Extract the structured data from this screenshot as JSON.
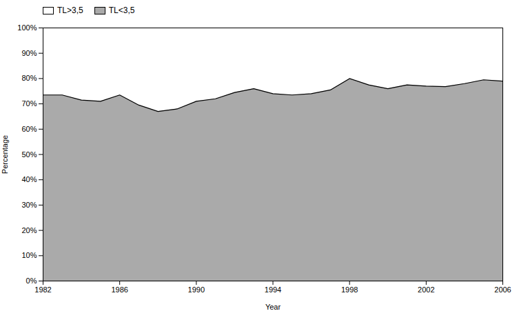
{
  "chart_data": {
    "type": "area",
    "stacked": true,
    "x": [
      1982,
      1983,
      1984,
      1985,
      1986,
      1987,
      1988,
      1989,
      1990,
      1991,
      1992,
      1993,
      1994,
      1995,
      1996,
      1997,
      1998,
      1999,
      2000,
      2001,
      2002,
      2003,
      2004,
      2005,
      2006
    ],
    "series": [
      {
        "name": "TL<3,5",
        "color": "#aaaaaa",
        "values": [
          0.735,
          0.735,
          0.715,
          0.71,
          0.735,
          0.695,
          0.67,
          0.68,
          0.71,
          0.72,
          0.745,
          0.76,
          0.74,
          0.735,
          0.74,
          0.755,
          0.8,
          0.775,
          0.76,
          0.775,
          0.77,
          0.768,
          0.78,
          0.795,
          0.79
        ]
      },
      {
        "name": "TL>3,5",
        "color": "#ffffff",
        "values": [
          0.265,
          0.265,
          0.285,
          0.29,
          0.265,
          0.305,
          0.33,
          0.32,
          0.29,
          0.28,
          0.255,
          0.24,
          0.26,
          0.265,
          0.26,
          0.245,
          0.2,
          0.225,
          0.24,
          0.225,
          0.23,
          0.232,
          0.22,
          0.205,
          0.21
        ]
      }
    ],
    "xlabel": "Year",
    "ylabel": "Percentage",
    "xlim": [
      1982,
      2006
    ],
    "ylim": [
      0,
      1.0
    ],
    "xticks": [
      1982,
      1986,
      1990,
      1994,
      1998,
      2002,
      2006
    ],
    "yticks": [
      {
        "value": 0.0,
        "label": "0%"
      },
      {
        "value": 0.1,
        "label": "10%"
      },
      {
        "value": 0.2,
        "label": "20%"
      },
      {
        "value": 0.3,
        "label": "30%"
      },
      {
        "value": 0.4,
        "label": "40%"
      },
      {
        "value": 0.5,
        "label": "50%"
      },
      {
        "value": 0.6,
        "label": "60%"
      },
      {
        "value": 0.7,
        "label": "70%"
      },
      {
        "value": 0.8,
        "label": "80%"
      },
      {
        "value": 0.9,
        "label": "90%"
      },
      {
        "value": 1.0,
        "label": "100%"
      }
    ],
    "legend": "upper left",
    "grid": false
  }
}
